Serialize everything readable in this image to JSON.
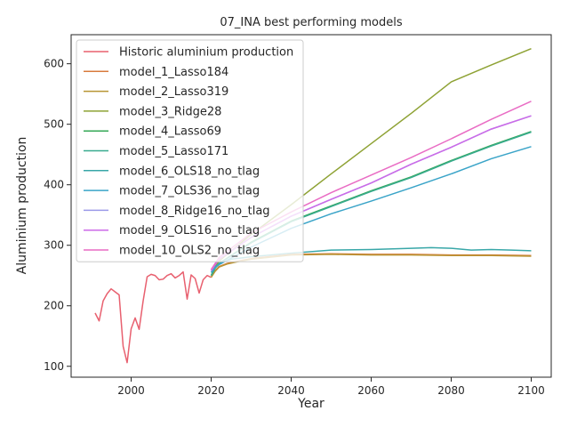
{
  "chart_data": {
    "type": "line",
    "title": "07_INA best performing models",
    "xlabel": "Year",
    "ylabel": "Aluminium production",
    "xlim": [
      1985,
      2105
    ],
    "ylim": [
      82,
      648
    ],
    "xticks": [
      2000,
      2020,
      2040,
      2060,
      2080,
      2100
    ],
    "yticks": [
      100,
      200,
      300,
      400,
      500,
      600
    ],
    "grid": false,
    "legend_position": "upper-left",
    "series": [
      {
        "name": "Historic aluminium production",
        "color": "#e8606f",
        "x": [
          1991,
          1992,
          1993,
          1994,
          1995,
          1996,
          1997,
          1998,
          1999,
          2000,
          2001,
          2002,
          2003,
          2004,
          2005,
          2006,
          2007,
          2008,
          2009,
          2010,
          2011,
          2012,
          2013,
          2014,
          2015,
          2016,
          2017,
          2018,
          2019,
          2020
        ],
        "y": [
          188,
          175,
          208,
          220,
          228,
          223,
          218,
          133,
          106,
          162,
          180,
          161,
          208,
          248,
          252,
          250,
          243,
          244,
          250,
          253,
          246,
          250,
          256,
          211,
          251,
          245,
          221,
          243,
          250,
          247
        ]
      },
      {
        "name": "model_1_Lasso184",
        "color": "#d87b3d",
        "x": [
          2020,
          2021,
          2022,
          2024,
          2026,
          2030,
          2040,
          2050,
          2060,
          2070,
          2080,
          2090,
          2100
        ],
        "y": [
          247,
          258,
          265,
          270,
          273,
          278,
          285,
          286,
          285,
          285,
          284,
          284,
          283
        ]
      },
      {
        "name": "model_2_Lasso319",
        "color": "#b89433",
        "x": [
          2020,
          2021,
          2022,
          2024,
          2026,
          2030,
          2040,
          2050,
          2060,
          2070,
          2080,
          2090,
          2100
        ],
        "y": [
          247,
          257,
          264,
          269,
          272,
          277,
          284,
          285,
          284,
          284,
          283,
          283,
          282
        ]
      },
      {
        "name": "model_3_Ridge28",
        "color": "#8ea234",
        "x": [
          2020,
          2021,
          2022,
          2030,
          2040,
          2050,
          2060,
          2070,
          2080,
          2090,
          2100
        ],
        "y": [
          250,
          265,
          274,
          318,
          367,
          418,
          468,
          518,
          570,
          598,
          625
        ]
      },
      {
        "name": "model_4_Lasso69",
        "color": "#34a856",
        "x": [
          2020,
          2021,
          2022,
          2030,
          2040,
          2050,
          2060,
          2070,
          2080,
          2090,
          2100
        ],
        "y": [
          250,
          262,
          270,
          305,
          340,
          365,
          390,
          413,
          440,
          465,
          488
        ]
      },
      {
        "name": "model_5_Lasso171",
        "color": "#38ab8f",
        "x": [
          2020,
          2021,
          2022,
          2030,
          2040,
          2050,
          2060,
          2070,
          2080,
          2090,
          2100
        ],
        "y": [
          250,
          262,
          270,
          304,
          339,
          364,
          389,
          412,
          439,
          464,
          487
        ]
      },
      {
        "name": "model_6_OLS18_no_tlag",
        "color": "#38a7a8",
        "x": [
          2020,
          2021,
          2022,
          2025,
          2030,
          2040,
          2050,
          2060,
          2070,
          2075,
          2080,
          2085,
          2090,
          2095,
          2100
        ],
        "y": [
          255,
          264,
          270,
          277,
          281,
          287,
          292,
          293,
          295,
          296,
          295,
          292,
          293,
          292,
          291
        ]
      },
      {
        "name": "model_7_OLS36_no_tlag",
        "color": "#3aa4c8",
        "x": [
          2020,
          2021,
          2022,
          2030,
          2040,
          2050,
          2060,
          2070,
          2080,
          2090,
          2100
        ],
        "y": [
          255,
          263,
          268,
          297,
          328,
          352,
          373,
          395,
          418,
          443,
          463
        ]
      },
      {
        "name": "model_8_Ridge16_no_tlag",
        "color": "#9b9ae8",
        "x": [
          2020,
          2021,
          2022,
          2030,
          2040,
          2050,
          2060,
          2070,
          2080,
          2090,
          2100
        ],
        "y": [
          258,
          268,
          277,
          313,
          348,
          376,
          403,
          434,
          462,
          492,
          514
        ]
      },
      {
        "name": "model_9_OLS16_no_tlag",
        "color": "#cc6ae8",
        "x": [
          2020,
          2021,
          2022,
          2030,
          2040,
          2050,
          2060,
          2070,
          2080,
          2090,
          2100
        ],
        "y": [
          258,
          268,
          277,
          313,
          348,
          376,
          403,
          434,
          462,
          492,
          514
        ]
      },
      {
        "name": "model_10_OLS2_no_tlag",
        "color": "#e96cc4",
        "x": [
          2020,
          2021,
          2022,
          2030,
          2040,
          2050,
          2060,
          2070,
          2080,
          2090,
          2100
        ],
        "y": [
          260,
          270,
          280,
          320,
          355,
          387,
          416,
          445,
          476,
          508,
          538
        ]
      }
    ]
  }
}
